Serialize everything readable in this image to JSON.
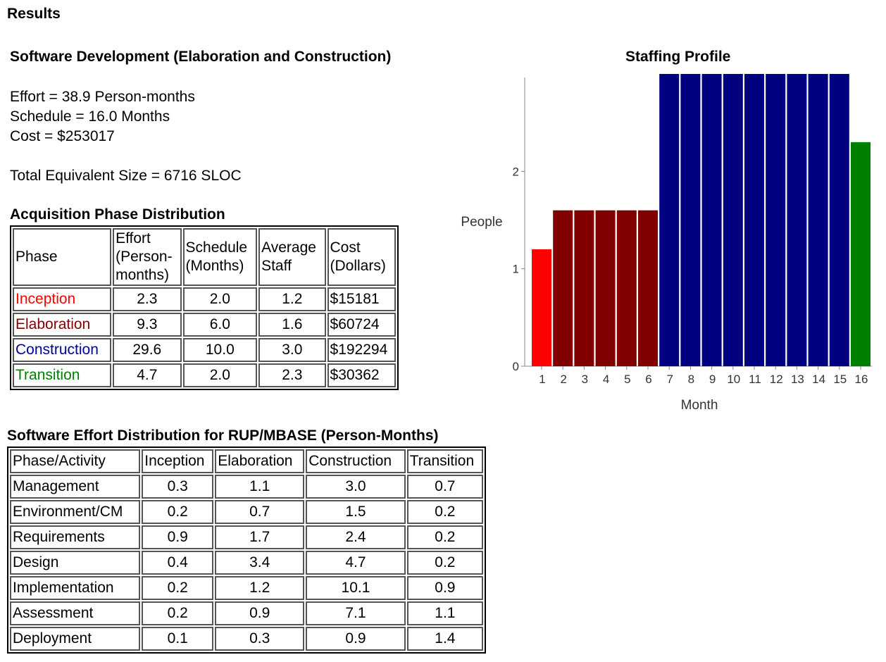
{
  "page": {
    "heading": "Results"
  },
  "summary": {
    "title": "Software Development (Elaboration and Construction)",
    "effort": "Effort = 38.9 Person-months",
    "schedule": "Schedule = 16.0 Months",
    "cost": "Cost = $253017",
    "size": "Total Equivalent Size = 6716 SLOC"
  },
  "phase_table": {
    "title": "Acquisition Phase Distribution",
    "headers": {
      "phase": "Phase",
      "effort_1": "Effort",
      "effort_2": "(Person-",
      "effort_3": "months)",
      "schedule_1": "Schedule",
      "schedule_2": "(Months)",
      "staff_1": "Average",
      "staff_2": "Staff",
      "cost_1": "Cost",
      "cost_2": "(Dollars)"
    },
    "rows": [
      {
        "phase": "Inception",
        "effort": "2.3",
        "schedule": "2.0",
        "staff": "1.2",
        "cost": "$15181",
        "color": "#ff0000"
      },
      {
        "phase": "Elaboration",
        "effort": "9.3",
        "schedule": "6.0",
        "staff": "1.6",
        "cost": "$60724",
        "color": "#800000"
      },
      {
        "phase": "Construction",
        "effort": "29.6",
        "schedule": "10.0",
        "staff": "3.0",
        "cost": "$192294",
        "color": "#000099"
      },
      {
        "phase": "Transition",
        "effort": "4.7",
        "schedule": "2.0",
        "staff": "2.3",
        "cost": "$30362",
        "color": "#008000"
      }
    ]
  },
  "rup_table": {
    "title": "Software Effort Distribution for RUP/MBASE (Person-Months)",
    "headers": [
      "Phase/Activity",
      "Inception",
      "Elaboration",
      "Construction",
      "Transition"
    ],
    "rows": [
      [
        "Management",
        "0.3",
        "1.1",
        "3.0",
        "0.7"
      ],
      [
        "Environment/CM",
        "0.2",
        "0.7",
        "1.5",
        "0.2"
      ],
      [
        "Requirements",
        "0.9",
        "1.7",
        "2.4",
        "0.2"
      ],
      [
        "Design",
        "0.4",
        "3.4",
        "4.7",
        "0.2"
      ],
      [
        "Implementation",
        "0.2",
        "1.2",
        "10.1",
        "0.9"
      ],
      [
        "Assessment",
        "0.2",
        "0.9",
        "7.1",
        "1.1"
      ],
      [
        "Deployment",
        "0.1",
        "0.3",
        "0.9",
        "1.4"
      ]
    ]
  },
  "chart_data": {
    "type": "bar",
    "title": "Staffing Profile",
    "xlabel": "Month",
    "ylabel": "People",
    "categories": [
      "1",
      "2",
      "3",
      "4",
      "5",
      "6",
      "7",
      "8",
      "9",
      "10",
      "11",
      "12",
      "13",
      "14",
      "15",
      "16"
    ],
    "values": [
      1.2,
      1.6,
      1.6,
      1.6,
      1.6,
      1.6,
      3.0,
      3.0,
      3.0,
      3.0,
      3.0,
      3.0,
      3.0,
      3.0,
      3.0,
      2.3
    ],
    "colors": [
      "#ff0000",
      "#800000",
      "#800000",
      "#800000",
      "#800000",
      "#800000",
      "#000080",
      "#000080",
      "#000080",
      "#000080",
      "#000080",
      "#000080",
      "#000080",
      "#000080",
      "#000080",
      "#008000"
    ],
    "yticks": [
      "0",
      "1",
      "2"
    ],
    "ylim": [
      0,
      3.0
    ],
    "grid": false
  }
}
